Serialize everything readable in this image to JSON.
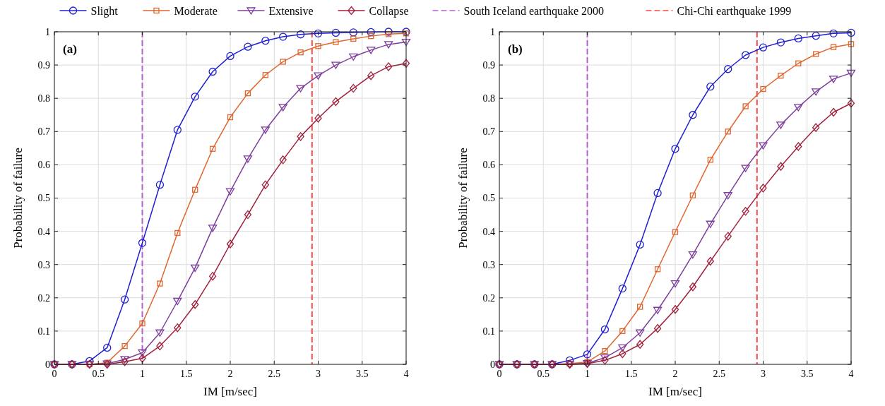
{
  "chart_data": [
    {
      "type": "line",
      "xlabel": "IM [m/sec]",
      "ylabel": "Probability of failure",
      "annotations": [
        "(a)"
      ],
      "x": [
        0,
        0.2,
        0.4,
        0.6,
        0.8,
        1.0,
        1.2,
        1.4,
        1.6,
        1.8,
        2.0,
        2.2,
        2.4,
        2.6,
        2.8,
        3.0,
        3.2,
        3.4,
        3.6,
        3.8,
        4.0
      ],
      "series": [
        {
          "name": "Slight",
          "color": "#1f1fd0",
          "marker": "circle",
          "values": [
            0,
            0,
            0.01,
            0.05,
            0.195,
            0.365,
            0.54,
            0.705,
            0.805,
            0.88,
            0.927,
            0.955,
            0.973,
            0.985,
            0.992,
            0.995,
            0.997,
            0.998,
            0.999,
            1.0,
            1.0
          ]
        },
        {
          "name": "Moderate",
          "color": "#e0662e",
          "marker": "square",
          "values": [
            0,
            0,
            0,
            0.005,
            0.055,
            0.123,
            0.243,
            0.395,
            0.525,
            0.648,
            0.743,
            0.815,
            0.87,
            0.91,
            0.938,
            0.957,
            0.969,
            0.979,
            0.987,
            0.993,
            0.995
          ]
        },
        {
          "name": "Extensive",
          "color": "#7e3f9c",
          "marker": "triangle",
          "values": [
            0,
            0,
            0,
            0.002,
            0.015,
            0.035,
            0.095,
            0.19,
            0.29,
            0.41,
            0.52,
            0.618,
            0.705,
            0.773,
            0.83,
            0.868,
            0.9,
            0.925,
            0.945,
            0.962,
            0.969
          ]
        },
        {
          "name": "Collapse",
          "color": "#a2203c",
          "marker": "diamond",
          "values": [
            0,
            0,
            0,
            0,
            0.008,
            0.018,
            0.055,
            0.11,
            0.18,
            0.265,
            0.362,
            0.45,
            0.54,
            0.615,
            0.685,
            0.74,
            0.79,
            0.83,
            0.868,
            0.895,
            0.905
          ]
        }
      ],
      "ref_lines": [
        {
          "axis": "x",
          "value": 1.0,
          "label": "South Iceland earthquake 2000",
          "color": "#b461d4",
          "line_style": "dashed"
        },
        {
          "axis": "x",
          "value": 2.93,
          "label": "Chi-Chi earthquake 1999",
          "color": "#ff4545",
          "line_style": "dashed"
        }
      ],
      "xlim": [
        0,
        4
      ],
      "xticks": [
        0,
        0.5,
        1,
        1.5,
        2,
        2.5,
        3,
        3.5,
        4
      ],
      "ylim": [
        0,
        1
      ],
      "yticks": [
        0,
        0.1,
        0.2,
        0.3,
        0.4,
        0.5,
        0.6,
        0.7,
        0.8,
        0.9,
        1
      ],
      "grid": true,
      "legend": "top"
    },
    {
      "type": "line",
      "xlabel": "IM [m/sec]",
      "ylabel": "Probability of failure",
      "annotations": [
        "(b)"
      ],
      "x": [
        0,
        0.2,
        0.4,
        0.6,
        0.8,
        1.0,
        1.2,
        1.4,
        1.6,
        1.8,
        2.0,
        2.2,
        2.4,
        2.6,
        2.8,
        3.0,
        3.2,
        3.4,
        3.6,
        3.8,
        4.0
      ],
      "series": [
        {
          "color": "#1f1fd0",
          "marker": "circle",
          "values": [
            0,
            0,
            0,
            0,
            0.012,
            0.03,
            0.105,
            0.228,
            0.36,
            0.515,
            0.648,
            0.75,
            0.835,
            0.888,
            0.93,
            0.953,
            0.968,
            0.98,
            0.988,
            0.995,
            0.997
          ]
        },
        {
          "color": "#e0662e",
          "marker": "square",
          "values": [
            0,
            0,
            0,
            0,
            0.002,
            0.007,
            0.04,
            0.1,
            0.173,
            0.286,
            0.398,
            0.508,
            0.615,
            0.7,
            0.776,
            0.828,
            0.868,
            0.905,
            0.933,
            0.954,
            0.963
          ]
        },
        {
          "color": "#7e3f9c",
          "marker": "triangle",
          "values": [
            0,
            0,
            0,
            0,
            0,
            0.003,
            0.02,
            0.05,
            0.095,
            0.163,
            0.243,
            0.33,
            0.422,
            0.508,
            0.59,
            0.658,
            0.72,
            0.773,
            0.82,
            0.858,
            0.876
          ]
        },
        {
          "color": "#a2203c",
          "marker": "diamond",
          "values": [
            0,
            0,
            0,
            0,
            0,
            0.002,
            0.012,
            0.032,
            0.06,
            0.108,
            0.165,
            0.233,
            0.31,
            0.385,
            0.46,
            0.53,
            0.595,
            0.655,
            0.712,
            0.758,
            0.785
          ]
        }
      ],
      "ref_lines": [
        {
          "axis": "x",
          "value": 1.0,
          "color": "#b461d4",
          "line_style": "dashed"
        },
        {
          "axis": "x",
          "value": 2.93,
          "color": "#ff4545",
          "line_style": "dashed"
        }
      ],
      "xlim": [
        0,
        4
      ],
      "xticks": [
        0,
        0.5,
        1,
        1.5,
        2,
        2.5,
        3,
        3.5,
        4
      ],
      "ylim": [
        0,
        1
      ],
      "yticks": [
        0,
        0.1,
        0.2,
        0.3,
        0.4,
        0.5,
        0.6,
        0.7,
        0.8,
        0.9,
        1
      ],
      "grid": true
    }
  ]
}
